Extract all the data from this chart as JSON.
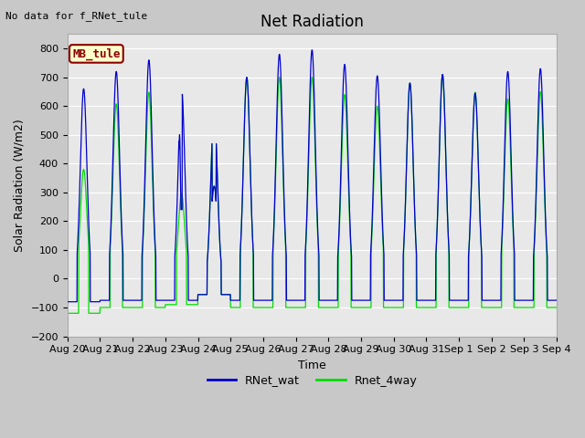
{
  "title": "Net Radiation",
  "xlabel": "Time",
  "ylabel": "Solar Radiation (W/m2)",
  "ylim": [
    -200,
    850
  ],
  "yticks": [
    -200,
    -100,
    0,
    100,
    200,
    300,
    400,
    500,
    600,
    700,
    800
  ],
  "x_tick_labels": [
    "Aug 20",
    "Aug 21",
    "Aug 22",
    "Aug 23",
    "Aug 24",
    "Aug 25",
    "Aug 26",
    "Aug 27",
    "Aug 28",
    "Aug 29",
    "Aug 30",
    "Aug 31",
    "Sep 1",
    "Sep 2",
    "Sep 3",
    "Sep 4"
  ],
  "fig_bg_color": "#c8c8c8",
  "plot_bg_color": "#e8e8e8",
  "grid_color": "#ffffff",
  "line1_color": "#0000cc",
  "line2_color": "#00dd00",
  "line1_label": "RNet_wat",
  "line2_label": "Rnet_4way",
  "annotation_text": "No data for f_RNet_tule",
  "legend_box_text": "MB_tule",
  "legend_box_color": "#ffffcc",
  "legend_box_edge_color": "#8b0000",
  "title_fontsize": 12,
  "axis_label_fontsize": 9,
  "tick_fontsize": 8,
  "n_days": 15,
  "points_per_day": 144,
  "peaks_blue": [
    660,
    720,
    760,
    660,
    585,
    700,
    780,
    795,
    745,
    705,
    680,
    710,
    645,
    720,
    730
  ],
  "peaks_green": [
    380,
    608,
    648,
    295,
    585,
    700,
    700,
    700,
    640,
    600,
    680,
    710,
    648,
    625,
    650
  ],
  "night_blue": -75,
  "night_green": -100
}
